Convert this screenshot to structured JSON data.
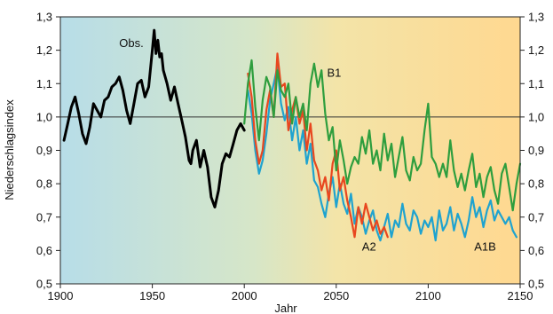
{
  "chart_data": {
    "type": "line",
    "xlabel": "Jahr",
    "ylabel": "Niederschlagsindex",
    "xlim": [
      1900,
      2150
    ],
    "ylim": [
      0.5,
      1.3
    ],
    "xticks": [
      1900,
      1950,
      2000,
      2050,
      2100,
      2150
    ],
    "yticks": [
      "0,5",
      "0,6",
      "0,7",
      "0,8",
      "0,9",
      "1,0",
      "1,1",
      "1,2",
      "1,3"
    ],
    "yticks_right": [
      "0,5",
      "0,6",
      "0,7",
      "0,8",
      "0,9",
      "1,0",
      "1,1",
      "1,2",
      "1,3"
    ],
    "reference_line": 1.0,
    "background_gradient": [
      "#b7dde8",
      "#ffd890"
    ],
    "series": [
      {
        "name": "Obs.",
        "color": "#000000",
        "x": [
          1902,
          1904,
          1906,
          1908,
          1910,
          1912,
          1914,
          1916,
          1918,
          1920,
          1922,
          1924,
          1926,
          1928,
          1930,
          1932,
          1934,
          1936,
          1938,
          1940,
          1942,
          1944,
          1946,
          1948,
          1950,
          1951,
          1952,
          1953,
          1954,
          1955,
          1956,
          1958,
          1960,
          1962,
          1964,
          1966,
          1968,
          1970,
          1971,
          1972,
          1974,
          1976,
          1978,
          1980,
          1982,
          1984,
          1986,
          1988,
          1990,
          1992,
          1994,
          1996,
          1998,
          2000
        ],
        "values": [
          0.93,
          0.98,
          1.03,
          1.06,
          1.01,
          0.95,
          0.92,
          0.97,
          1.04,
          1.02,
          1.0,
          1.05,
          1.06,
          1.09,
          1.1,
          1.12,
          1.08,
          1.02,
          0.98,
          1.04,
          1.1,
          1.11,
          1.06,
          1.09,
          1.2,
          1.26,
          1.19,
          1.23,
          1.18,
          1.19,
          1.14,
          1.1,
          1.05,
          1.09,
          1.04,
          0.99,
          0.94,
          0.87,
          0.86,
          0.9,
          0.93,
          0.85,
          0.9,
          0.85,
          0.76,
          0.73,
          0.78,
          0.86,
          0.89,
          0.88,
          0.92,
          0.96,
          0.98,
          0.96
        ]
      },
      {
        "name": "B1",
        "color": "#2e9e3e",
        "x": [
          2000,
          2002,
          2004,
          2006,
          2008,
          2010,
          2012,
          2014,
          2016,
          2018,
          2020,
          2022,
          2024,
          2026,
          2028,
          2030,
          2032,
          2034,
          2036,
          2038,
          2040,
          2042,
          2044,
          2046,
          2048,
          2050,
          2052,
          2054,
          2056,
          2058,
          2060,
          2062,
          2064,
          2066,
          2068,
          2070,
          2072,
          2074,
          2076,
          2078,
          2080,
          2082,
          2084,
          2086,
          2088,
          2090,
          2092,
          2094,
          2096,
          2098,
          2100,
          2102,
          2104,
          2106,
          2108,
          2110,
          2112,
          2114,
          2116,
          2118,
          2120,
          2122,
          2124,
          2126,
          2128,
          2130,
          2132,
          2134,
          2136,
          2138,
          2140,
          2142,
          2144,
          2146,
          2148,
          2150
        ],
        "values": [
          0.98,
          1.1,
          1.17,
          1.03,
          0.93,
          1.05,
          1.12,
          1.09,
          1.0,
          1.14,
          1.08,
          1.06,
          1.1,
          0.98,
          1.06,
          1.0,
          1.04,
          0.96,
          1.1,
          1.16,
          1.09,
          1.14,
          1.01,
          0.93,
          0.97,
          0.84,
          0.93,
          0.87,
          0.8,
          0.85,
          0.88,
          0.86,
          0.94,
          0.89,
          0.96,
          0.86,
          0.9,
          0.84,
          0.95,
          0.87,
          0.92,
          0.82,
          0.88,
          0.94,
          0.84,
          0.81,
          0.88,
          0.84,
          0.86,
          0.96,
          1.04,
          0.88,
          0.86,
          0.82,
          0.86,
          0.82,
          0.93,
          0.84,
          0.79,
          0.83,
          0.78,
          0.84,
          0.89,
          0.79,
          0.83,
          0.76,
          0.82,
          0.85,
          0.78,
          0.74,
          0.83,
          0.86,
          0.79,
          0.72,
          0.8,
          0.86
        ]
      },
      {
        "name": "A2",
        "color": "#e8471f",
        "x": [
          2002,
          2004,
          2006,
          2008,
          2010,
          2012,
          2014,
          2016,
          2018,
          2020,
          2022,
          2024,
          2026,
          2028,
          2030,
          2032,
          2034,
          2036,
          2038,
          2040,
          2042,
          2044,
          2046,
          2048,
          2050,
          2052,
          2054,
          2056,
          2058,
          2060,
          2062,
          2064,
          2066,
          2068,
          2070,
          2072,
          2074,
          2076,
          2078
        ],
        "values": [
          1.13,
          1.06,
          0.93,
          0.86,
          0.9,
          1.02,
          1.08,
          1.0,
          1.19,
          1.09,
          1.1,
          0.96,
          1.02,
          1.06,
          0.98,
          1.02,
          0.9,
          0.98,
          0.87,
          0.84,
          0.78,
          0.82,
          0.75,
          0.86,
          0.9,
          0.78,
          0.82,
          0.75,
          0.7,
          0.64,
          0.73,
          0.68,
          0.74,
          0.7,
          0.66,
          0.69,
          0.65,
          0.67,
          0.64
        ]
      },
      {
        "name": "A1B",
        "color": "#1fa3cf",
        "x": [
          2002,
          2004,
          2006,
          2008,
          2010,
          2012,
          2014,
          2016,
          2018,
          2020,
          2022,
          2024,
          2026,
          2028,
          2030,
          2032,
          2034,
          2036,
          2038,
          2040,
          2042,
          2044,
          2046,
          2048,
          2050,
          2052,
          2054,
          2056,
          2058,
          2060,
          2062,
          2064,
          2066,
          2068,
          2070,
          2072,
          2074,
          2076,
          2078,
          2080,
          2082,
          2084,
          2086,
          2088,
          2090,
          2092,
          2094,
          2096,
          2098,
          2100,
          2102,
          2104,
          2106,
          2108,
          2110,
          2112,
          2114,
          2116,
          2118,
          2120,
          2122,
          2124,
          2126,
          2128,
          2130,
          2132,
          2134,
          2136,
          2138,
          2140,
          2142,
          2144,
          2146,
          2148
        ],
        "values": [
          1.08,
          1.01,
          0.9,
          0.83,
          0.87,
          0.95,
          1.05,
          1.1,
          1.15,
          1.04,
          0.99,
          1.03,
          0.93,
          1.0,
          0.9,
          0.96,
          0.86,
          0.92,
          0.81,
          0.79,
          0.74,
          0.7,
          0.77,
          0.82,
          0.73,
          0.8,
          0.74,
          0.71,
          0.77,
          0.68,
          0.73,
          0.7,
          0.65,
          0.69,
          0.72,
          0.66,
          0.63,
          0.67,
          0.71,
          0.64,
          0.69,
          0.67,
          0.74,
          0.68,
          0.66,
          0.72,
          0.7,
          0.65,
          0.69,
          0.67,
          0.7,
          0.63,
          0.72,
          0.66,
          0.68,
          0.73,
          0.66,
          0.71,
          0.68,
          0.64,
          0.69,
          0.76,
          0.7,
          0.73,
          0.67,
          0.72,
          0.75,
          0.69,
          0.72,
          0.7,
          0.68,
          0.7,
          0.66,
          0.64
        ]
      }
    ]
  }
}
